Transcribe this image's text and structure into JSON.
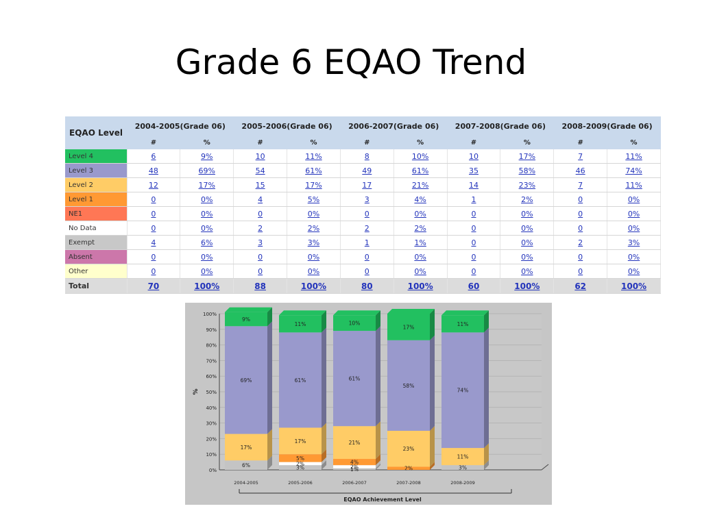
{
  "slide_title": "Grade 6 EQAO Trend",
  "table": {
    "level_header": "EQAO Level",
    "years": [
      "2004-2005(Grade 06)",
      "2005-2006(Grade 06)",
      "2006-2007(Grade 06)",
      "2007-2008(Grade 06)",
      "2008-2009(Grade 06)"
    ],
    "count_header": "#",
    "pct_header": "%",
    "rows": [
      {
        "label": "Level 4",
        "color": "#22c060",
        "cells": [
          "6",
          "9%",
          "10",
          "11%",
          "8",
          "10%",
          "10",
          "17%",
          "7",
          "11%"
        ]
      },
      {
        "label": "Level 3",
        "color": "#9999cc",
        "cells": [
          "48",
          "69%",
          "54",
          "61%",
          "49",
          "61%",
          "35",
          "58%",
          "46",
          "74%"
        ]
      },
      {
        "label": "Level 2",
        "color": "#ffcc66",
        "cells": [
          "12",
          "17%",
          "15",
          "17%",
          "17",
          "21%",
          "14",
          "23%",
          "7",
          "11%"
        ]
      },
      {
        "label": "Level 1",
        "color": "#ff9933",
        "cells": [
          "0",
          "0%",
          "4",
          "5%",
          "3",
          "4%",
          "1",
          "2%",
          "0",
          "0%"
        ]
      },
      {
        "label": "NE1",
        "color": "#ff7755",
        "cells": [
          "0",
          "0%",
          "0",
          "0%",
          "0",
          "0%",
          "0",
          "0%",
          "0",
          "0%"
        ]
      },
      {
        "label": "No Data",
        "color": "#ffffff",
        "cells": [
          "0",
          "0%",
          "2",
          "2%",
          "2",
          "2%",
          "0",
          "0%",
          "0",
          "0%"
        ]
      },
      {
        "label": "Exempt",
        "color": "#c8c8c8",
        "cells": [
          "4",
          "6%",
          "3",
          "3%",
          "1",
          "1%",
          "0",
          "0%",
          "2",
          "3%"
        ]
      },
      {
        "label": "Absent",
        "color": "#cc77aa",
        "cells": [
          "0",
          "0%",
          "0",
          "0%",
          "0",
          "0%",
          "0",
          "0%",
          "0",
          "0%"
        ]
      },
      {
        "label": "Other",
        "color": "#ffffcc",
        "cells": [
          "0",
          "0%",
          "0",
          "0%",
          "0",
          "0%",
          "0",
          "0%",
          "0",
          "0%"
        ]
      }
    ],
    "total": {
      "label": "Total",
      "cells": [
        "70",
        "100%",
        "88",
        "100%",
        "80",
        "100%",
        "60",
        "100%",
        "62",
        "100%"
      ]
    }
  },
  "chart_data": {
    "type": "bar",
    "stacked": true,
    "categories": [
      "2004-2005",
      "2005-2006",
      "2006-2007",
      "2007-2008",
      "2008-2009"
    ],
    "xlabel": "EQAO Achievement Level",
    "ylabel": "%",
    "ylim": [
      0,
      100
    ],
    "yticks": [
      "0%",
      "10%",
      "20%",
      "30%",
      "40%",
      "50%",
      "60%",
      "70%",
      "80%",
      "90%",
      "100%"
    ],
    "series": [
      {
        "color": "#c4c4c4",
        "values": [
          6,
          3,
          1,
          0,
          3
        ],
        "labels": [
          "6%",
          "3%",
          "1%",
          "",
          "3%"
        ]
      },
      {
        "color": "#ffffff",
        "values": [
          0,
          2,
          2,
          0,
          0
        ],
        "labels": [
          "",
          "2%",
          "2%",
          "",
          ""
        ]
      },
      {
        "color": "#ff9933",
        "values": [
          0,
          5,
          4,
          2,
          0
        ],
        "labels": [
          "",
          "5%",
          "4%",
          "2%",
          ""
        ]
      },
      {
        "color": "#ffcc66",
        "values": [
          17,
          17,
          21,
          23,
          11
        ],
        "labels": [
          "17%",
          "17%",
          "21%",
          "23%",
          "11%"
        ]
      },
      {
        "color": "#9999cc",
        "values": [
          69,
          61,
          61,
          58,
          74
        ],
        "labels": [
          "69%",
          "61%",
          "61%",
          "58%",
          "74%"
        ]
      },
      {
        "color": "#22c060",
        "values": [
          9,
          11,
          10,
          17,
          11
        ],
        "labels": [
          "9%",
          "11%",
          "10%",
          "17%",
          "11%"
        ]
      }
    ]
  }
}
